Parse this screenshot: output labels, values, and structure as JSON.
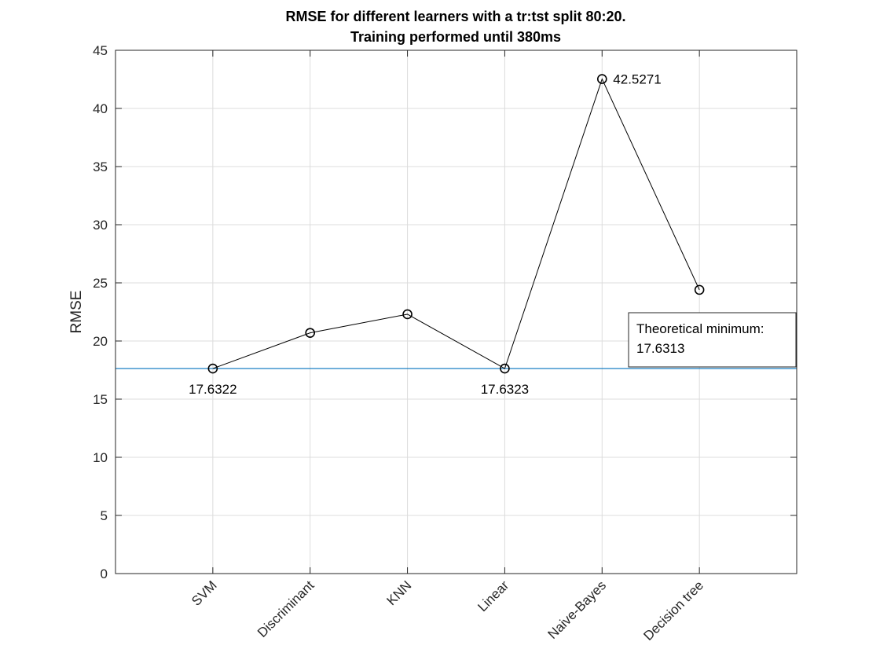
{
  "chart_data": {
    "type": "line",
    "title": [
      "RMSE for different learners with a tr:tst split 80:20.",
      "Training performed until 380ms"
    ],
    "xlabel": "",
    "ylabel": "RMSE",
    "categories": [
      "SVM",
      "Discriminant",
      "KNN",
      "Linear",
      "Naive-Bayes",
      "Decision tree"
    ],
    "series": [
      {
        "values": [
          17.6322,
          20.7,
          22.3,
          17.6323,
          42.5271,
          24.4
        ],
        "line_color": "#000000",
        "marker": "circle"
      }
    ],
    "ylim": [
      0,
      45
    ],
    "yticks": [
      0,
      5,
      10,
      15,
      20,
      25,
      30,
      35,
      40,
      45
    ],
    "grid": true,
    "reference_line": {
      "value": 17.6313,
      "color": "#0072BD"
    },
    "data_labels": [
      {
        "index": 0,
        "text": "17.6322"
      },
      {
        "index": 3,
        "text": "17.6323"
      },
      {
        "index": 4,
        "text": "42.5271"
      }
    ],
    "annotation": {
      "lines": [
        "Theoretical minimum:",
        "17.6313"
      ],
      "placement": "right, just above the reference line"
    }
  }
}
